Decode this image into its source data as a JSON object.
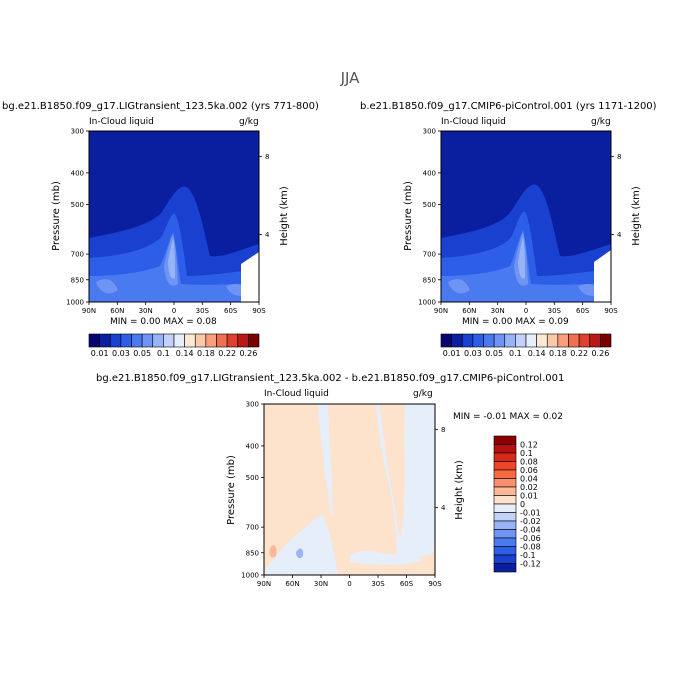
{
  "title": "JJA",
  "chart_data": [
    {
      "type": "heatmap",
      "title": "bg.e21.B1850.f09_g17.LIGtransient_123.5ka.002 (yrs 771-800)",
      "left_label": "In-Cloud liquid",
      "right_label": "g/kg",
      "xlabel": "",
      "ylabel": "Pressure (mb)",
      "y2label": "Height (km)",
      "x_ticks": [
        "90N",
        "60N",
        "30N",
        "0",
        "30S",
        "60S",
        "90S"
      ],
      "y_ticks": [
        "300",
        "400",
        "500",
        "700",
        "850",
        "1000"
      ],
      "y2_ticks": [
        "8",
        "4"
      ],
      "stats_text": "MIN =    0.00   MAX =    0.08",
      "min": 0.0,
      "max": 0.08
    },
    {
      "type": "heatmap",
      "title": "b.e21.B1850.f09_g17.CMIP6-piControl.001 (yrs 1171-1200)",
      "left_label": "In-Cloud liquid",
      "right_label": "g/kg",
      "xlabel": "",
      "ylabel": "Pressure (mb)",
      "y2label": "Height (km)",
      "x_ticks": [
        "90N",
        "60N",
        "30N",
        "0",
        "30S",
        "60S",
        "90S"
      ],
      "y_ticks": [
        "300",
        "400",
        "500",
        "700",
        "850",
        "1000"
      ],
      "y2_ticks": [
        "8",
        "4"
      ],
      "stats_text": "MIN =    0.00   MAX =    0.09",
      "min": 0.0,
      "max": 0.09
    },
    {
      "type": "heatmap",
      "title": "bg.e21.B1850.f09_g17.LIGtransient_123.5ka.002 - b.e21.B1850.f09_g17.CMIP6-piControl.001",
      "left_label": "In-Cloud liquid",
      "right_label": "g/kg",
      "xlabel": "",
      "ylabel": "Pressure (mb)",
      "y2label": "Height (km)",
      "x_ticks": [
        "90N",
        "60N",
        "30N",
        "0",
        "30S",
        "60S",
        "90S"
      ],
      "y_ticks": [
        "300",
        "400",
        "500",
        "700",
        "850",
        "1000"
      ],
      "y2_ticks": [
        "8",
        "4"
      ],
      "stats_text": "MIN =   -0.01   MAX =    0.02",
      "min": -0.01,
      "max": 0.02
    }
  ],
  "colorbar_main": {
    "labels": [
      "0.01",
      "0.03",
      "0.05",
      "0.1",
      "0.14",
      "0.18",
      "0.22",
      "0.26"
    ],
    "colors": [
      "#06066e",
      "#0a1fa0",
      "#1a40d0",
      "#2c5ee8",
      "#4a7af0",
      "#6f95f4",
      "#98b4f6",
      "#c2d2f8",
      "#e6eefa",
      "#fde8d8",
      "#fcc8a8",
      "#f8a07a",
      "#f07050",
      "#e04030",
      "#b81818",
      "#7a0000"
    ]
  },
  "colorbar_diff": {
    "labels": [
      "0.12",
      "0.1",
      "0.08",
      "0.06",
      "0.04",
      "0.02",
      "0.01",
      "0",
      "-0.01",
      "-0.02",
      "-0.04",
      "-0.06",
      "-0.08",
      "-0.1",
      "-0.12"
    ],
    "colors": [
      "#8a0000",
      "#b81010",
      "#d82818",
      "#ee4528",
      "#f66a40",
      "#fa9070",
      "#fcb898",
      "#fde2cc",
      "#e6eefa",
      "#c2d2f8",
      "#98b4f6",
      "#6f95f4",
      "#4a7af0",
      "#2c5ee8",
      "#1a40d0",
      "#0a1fa0"
    ]
  }
}
